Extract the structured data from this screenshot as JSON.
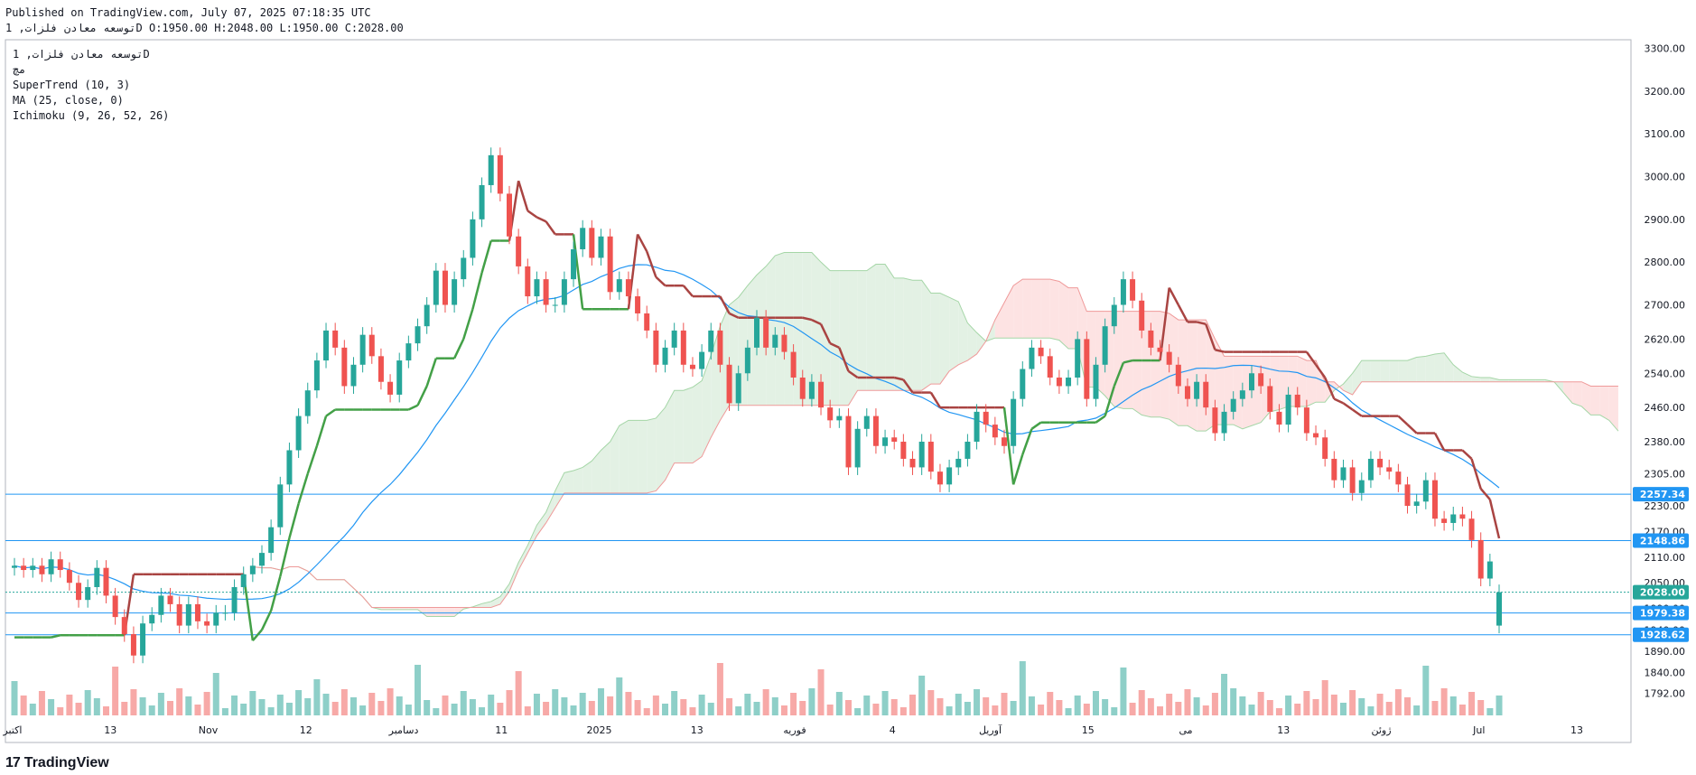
{
  "header": {
    "published": "Published on TradingView.com, July 07, 2025 07:18:35 UTC",
    "ohlc_line": "توسعه معادن فلزات, 1D O:1950.00 H:2048.00 L:1950.00 C:2028.00"
  },
  "legend": {
    "symbol": "توسعه معادن فلزات, 1D",
    "exchange": "مچ",
    "supertrend": "SuperTrend (10, 3)",
    "ma": "MA (25, close, 0)",
    "ichimoku": "Ichimoku (9, 26, 52, 26)"
  },
  "footer": {
    "brand": "TradingView",
    "mark": "17"
  },
  "colors": {
    "up": "#26a69a",
    "down": "#ef5350",
    "up_vol": "#8ecfc8",
    "down_vol": "#f7a9a7",
    "ma": "#2196f3",
    "st_up": "#43a047",
    "st_down": "#a94442",
    "cloud_up": "#e3f1e4",
    "cloud_down": "#fde3e3",
    "hline": "#2196f3",
    "axis_text": "#131722"
  },
  "chart_data": {
    "type": "candlestick",
    "y_range": [
      1740,
      3320
    ],
    "y_ticks": [
      "3300.00",
      "3200.00",
      "3100.00",
      "3000.00",
      "2900.00",
      "2800.00",
      "2700.00",
      "2620.00",
      "2540.00",
      "2460.00",
      "2380.00",
      "2305.00",
      "2230.00",
      "2170.00",
      "2110.00",
      "2050.00",
      "1990.00",
      "1940.00",
      "1890.00",
      "1840.00",
      "1792.00"
    ],
    "x_labels": [
      "اکتبر",
      "13",
      "Nov",
      "12",
      "دسامبر",
      "11",
      "2025",
      "13",
      "فوریه",
      "4",
      "آوریل",
      "15",
      "می",
      "13",
      "ژوئن",
      "Jul",
      "13"
    ],
    "price_tags": [
      {
        "label": "2257.34",
        "value": 2257.34,
        "kind": "line"
      },
      {
        "label": "2148.86",
        "value": 2148.86,
        "kind": "line"
      },
      {
        "label": "2028.00",
        "value": 2028.0,
        "kind": "last"
      },
      {
        "label": "1979.38",
        "value": 1979.38,
        "kind": "line"
      },
      {
        "label": "1928.62",
        "value": 1928.62,
        "kind": "line"
      }
    ],
    "closes": [
      2090,
      2080,
      2090,
      2070,
      2105,
      2080,
      2050,
      2010,
      2040,
      2085,
      2020,
      1970,
      1930,
      1880,
      1955,
      1975,
      2020,
      2000,
      1950,
      2000,
      1960,
      1950,
      1980,
      1980,
      2040,
      2070,
      2090,
      2120,
      2180,
      2280,
      2360,
      2440,
      2500,
      2570,
      2640,
      2600,
      2510,
      2560,
      2630,
      2580,
      2520,
      2490,
      2570,
      2610,
      2650,
      2700,
      2780,
      2700,
      2760,
      2810,
      2900,
      2980,
      3050,
      2960,
      2860,
      2790,
      2720,
      2760,
      2700,
      2700,
      2760,
      2830,
      2880,
      2810,
      2860,
      2730,
      2760,
      2720,
      2680,
      2640,
      2560,
      2600,
      2640,
      2560,
      2550,
      2590,
      2640,
      2560,
      2470,
      2540,
      2600,
      2670,
      2600,
      2630,
      2590,
      2530,
      2480,
      2520,
      2460,
      2430,
      2440,
      2320,
      2410,
      2440,
      2370,
      2390,
      2380,
      2340,
      2320,
      2380,
      2310,
      2280,
      2320,
      2340,
      2380,
      2450,
      2420,
      2390,
      2370,
      2480,
      2550,
      2600,
      2580,
      2530,
      2510,
      2530,
      2620,
      2480,
      2560,
      2650,
      2700,
      2760,
      2710,
      2640,
      2600,
      2590,
      2560,
      2510,
      2480,
      2520,
      2460,
      2400,
      2450,
      2480,
      2500,
      2540,
      2510,
      2450,
      2420,
      2490,
      2460,
      2400,
      2390,
      2340,
      2290,
      2320,
      2260,
      2290,
      2340,
      2320,
      2310,
      2280,
      2230,
      2240,
      2290,
      2200,
      2190,
      2210,
      2200,
      2150,
      2060,
      2100,
      2028
    ],
    "opens": [
      2085,
      2090,
      2080,
      2090,
      2070,
      2105,
      2080,
      2050,
      2010,
      2040,
      2085,
      2020,
      1970,
      1930,
      1880,
      1955,
      1975,
      2020,
      2000,
      1950,
      2000,
      1960,
      1950,
      1980,
      1980,
      2040,
      2070,
      2090,
      2120,
      2180,
      2280,
      2360,
      2440,
      2500,
      2570,
      2640,
      2600,
      2510,
      2560,
      2630,
      2580,
      2520,
      2490,
      2570,
      2610,
      2650,
      2700,
      2780,
      2700,
      2760,
      2810,
      2900,
      2980,
      3050,
      2960,
      2860,
      2790,
      2720,
      2760,
      2700,
      2700,
      2760,
      2830,
      2880,
      2810,
      2860,
      2730,
      2760,
      2720,
      2680,
      2640,
      2560,
      2600,
      2640,
      2560,
      2550,
      2590,
      2640,
      2560,
      2470,
      2540,
      2600,
      2670,
      2600,
      2630,
      2590,
      2530,
      2480,
      2520,
      2460,
      2430,
      2440,
      2320,
      2410,
      2440,
      2370,
      2390,
      2380,
      2340,
      2320,
      2380,
      2310,
      2280,
      2320,
      2340,
      2380,
      2450,
      2420,
      2390,
      2370,
      2480,
      2550,
      2600,
      2580,
      2530,
      2510,
      2530,
      2620,
      2480,
      2560,
      2650,
      2700,
      2760,
      2710,
      2640,
      2600,
      2590,
      2560,
      2510,
      2480,
      2520,
      2460,
      2400,
      2450,
      2480,
      2500,
      2540,
      2510,
      2450,
      2420,
      2490,
      2460,
      2400,
      2390,
      2340,
      2290,
      2320,
      2260,
      2290,
      2340,
      2320,
      2310,
      2280,
      2230,
      2240,
      2290,
      2200,
      2190,
      2210,
      2200,
      2150,
      2060,
      1950
    ],
    "ma_values_start_index": 0,
    "supertrend_note": "",
    "volume_scale": [
      0,
      1
    ]
  }
}
